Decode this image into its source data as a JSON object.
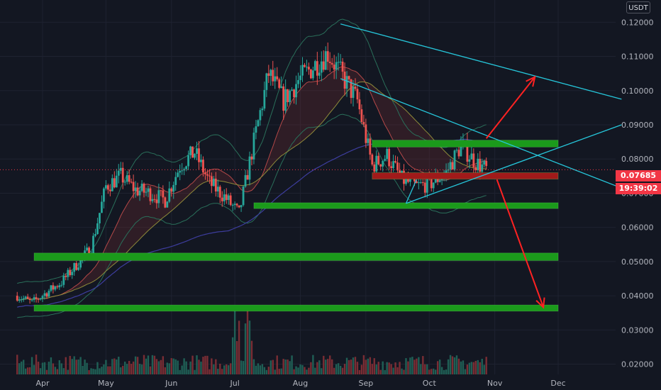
{
  "currency": "USDT",
  "current_price": "0.07685",
  "countdown": "19:39:02",
  "colors": {
    "background": "#131722",
    "up": "#26a69a",
    "down": "#ef5350",
    "support_zone": "#1b9a1b",
    "resistance_zone": "#a11a1a",
    "trendline": "#26c6da",
    "arrow": "#ff2222",
    "price_tag": "#f23645"
  },
  "chart_data": {
    "type": "candlestick",
    "x_ticks": [
      "Apr",
      "May",
      "Jun",
      "Jul",
      "Aug",
      "Sep",
      "Oct",
      "Nov",
      "Dec"
    ],
    "y_ticks": [
      "0.02000",
      "0.03000",
      "0.04000",
      "0.05000",
      "0.06000",
      "0.07000",
      "0.08000",
      "0.09000",
      "0.10000",
      "0.11000",
      "0.12000"
    ],
    "ylim": [
      0.017,
      0.1265
    ],
    "price_path": [
      {
        "date": "Mar 20",
        "price": 0.04
      },
      {
        "date": "Mar 27",
        "price": 0.038
      },
      {
        "date": "Apr 3",
        "price": 0.041
      },
      {
        "date": "Apr 10",
        "price": 0.044
      },
      {
        "date": "Apr 17",
        "price": 0.049
      },
      {
        "date": "Apr 24",
        "price": 0.054
      },
      {
        "date": "May 1",
        "price": 0.072
      },
      {
        "date": "May 8",
        "price": 0.075
      },
      {
        "date": "May 15",
        "price": 0.071
      },
      {
        "date": "May 22",
        "price": 0.07
      },
      {
        "date": "May 29",
        "price": 0.068
      },
      {
        "date": "Jun 5",
        "price": 0.078
      },
      {
        "date": "Jun 12",
        "price": 0.082
      },
      {
        "date": "Jun 19",
        "price": 0.073
      },
      {
        "date": "Jun 26",
        "price": 0.069
      },
      {
        "date": "Jul 3",
        "price": 0.064
      },
      {
        "date": "Jul 10",
        "price": 0.085
      },
      {
        "date": "Jul 17",
        "price": 0.105
      },
      {
        "date": "Jul 24",
        "price": 0.097
      },
      {
        "date": "Jul 31",
        "price": 0.103
      },
      {
        "date": "Aug 7",
        "price": 0.107
      },
      {
        "date": "Aug 14",
        "price": 0.111
      },
      {
        "date": "Aug 21",
        "price": 0.104
      },
      {
        "date": "Aug 28",
        "price": 0.097
      },
      {
        "date": "Sep 4",
        "price": 0.078
      },
      {
        "date": "Sep 11",
        "price": 0.081
      },
      {
        "date": "Sep 18",
        "price": 0.074
      },
      {
        "date": "Sep 25",
        "price": 0.072
      },
      {
        "date": "Oct 2",
        "price": 0.073
      },
      {
        "date": "Oct 9",
        "price": 0.076
      },
      {
        "date": "Oct 16",
        "price": 0.084
      },
      {
        "date": "Oct 23",
        "price": 0.079
      },
      {
        "date": "Oct 28",
        "price": 0.0769
      }
    ],
    "current_price": 0.07685,
    "zones": [
      {
        "kind": "support",
        "low": 0.0655,
        "high": 0.0672,
        "from": "Jul 10",
        "to": "Dec 1"
      },
      {
        "kind": "support",
        "low": 0.0503,
        "high": 0.0525,
        "from": "Mar 28",
        "to": "Dec 1"
      },
      {
        "kind": "support",
        "low": 0.0355,
        "high": 0.0373,
        "from": "Mar 28",
        "to": "Dec 1"
      },
      {
        "kind": "resistance",
        "low": 0.0835,
        "high": 0.0855,
        "from": "Sep 4",
        "to": "Dec 1"
      },
      {
        "kind": "resistance_red",
        "low": 0.0741,
        "high": 0.076,
        "from": "Sep 4",
        "to": "Dec 1"
      }
    ]
  }
}
